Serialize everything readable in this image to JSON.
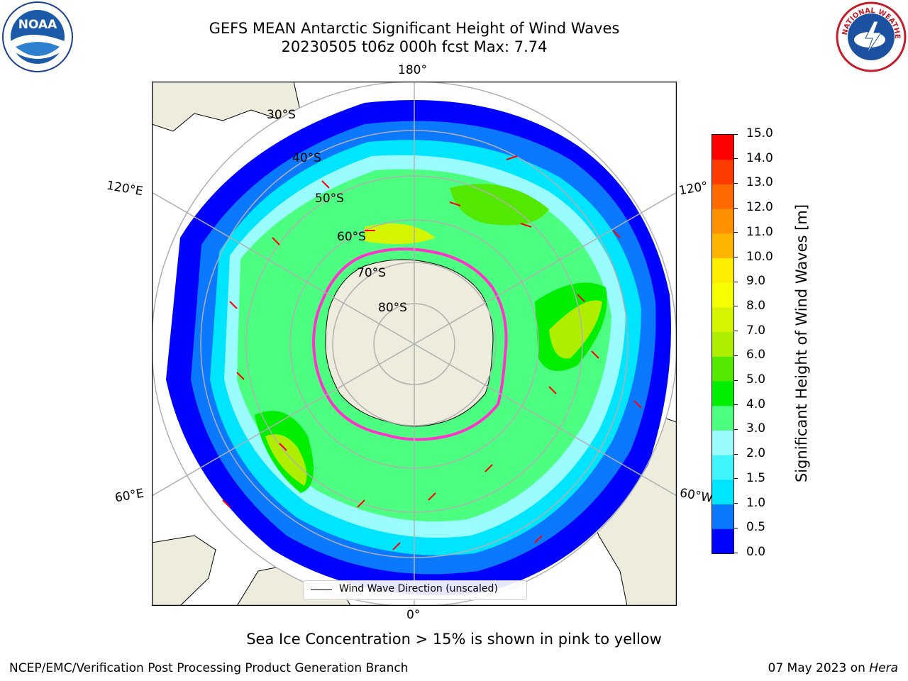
{
  "header": {
    "title_line1": "GEFS MEAN Antarctic Significant Height of Wind Waves",
    "title_line2": "20230505 t06z 000h fcst   Max: 7.74"
  },
  "logos": {
    "left": "noaa-logo",
    "left_text": "NOAA",
    "right": "national-weather-service-logo",
    "right_text": "NATIONAL WEATHER SERVICE"
  },
  "map": {
    "projection": "south-polar-stereographic",
    "longitude_labels": {
      "top": "180°",
      "bottom": "0°",
      "upper_left": "120°E",
      "upper_right": "120°",
      "lower_left": "60°E",
      "lower_right": "60°W"
    },
    "latitude_labels": [
      "30°S",
      "40°S",
      "50°S",
      "60°S",
      "70°S",
      "80°S"
    ],
    "land_color": "#eeecdc",
    "ice_color": "#ff33cc",
    "arrow_color": "#ff0000",
    "legend_label": "Wind Wave Direction (unscaled)"
  },
  "colorbar": {
    "label": "Significant Height of Wind Waves [m]",
    "ticks": [
      "0.0",
      "0.5",
      "1.0",
      "1.5",
      "2.0",
      "3.0",
      "4.0",
      "5.0",
      "6.0",
      "7.0",
      "8.0",
      "9.0",
      "10.0",
      "11.0",
      "12.0",
      "13.0",
      "14.0",
      "15.0"
    ],
    "colors": [
      "#0000ff",
      "#0a78ff",
      "#00e5ff",
      "#41f5ff",
      "#9afcff",
      "#4dff80",
      "#00ee00",
      "#52e800",
      "#b0ee00",
      "#d6f500",
      "#f5ff00",
      "#ffee00",
      "#ffb400",
      "#ff9000",
      "#ff6a00",
      "#ff3c00",
      "#ff0000"
    ]
  },
  "footer": {
    "sea_ice_note": "Sea Ice Concentration > 15% is shown in pink to yellow",
    "credit": "NCEP/EMC/Verification Post Processing Product Generation Branch",
    "date_prefix": "07 May 2023 on ",
    "date_machine": "Hera"
  }
}
